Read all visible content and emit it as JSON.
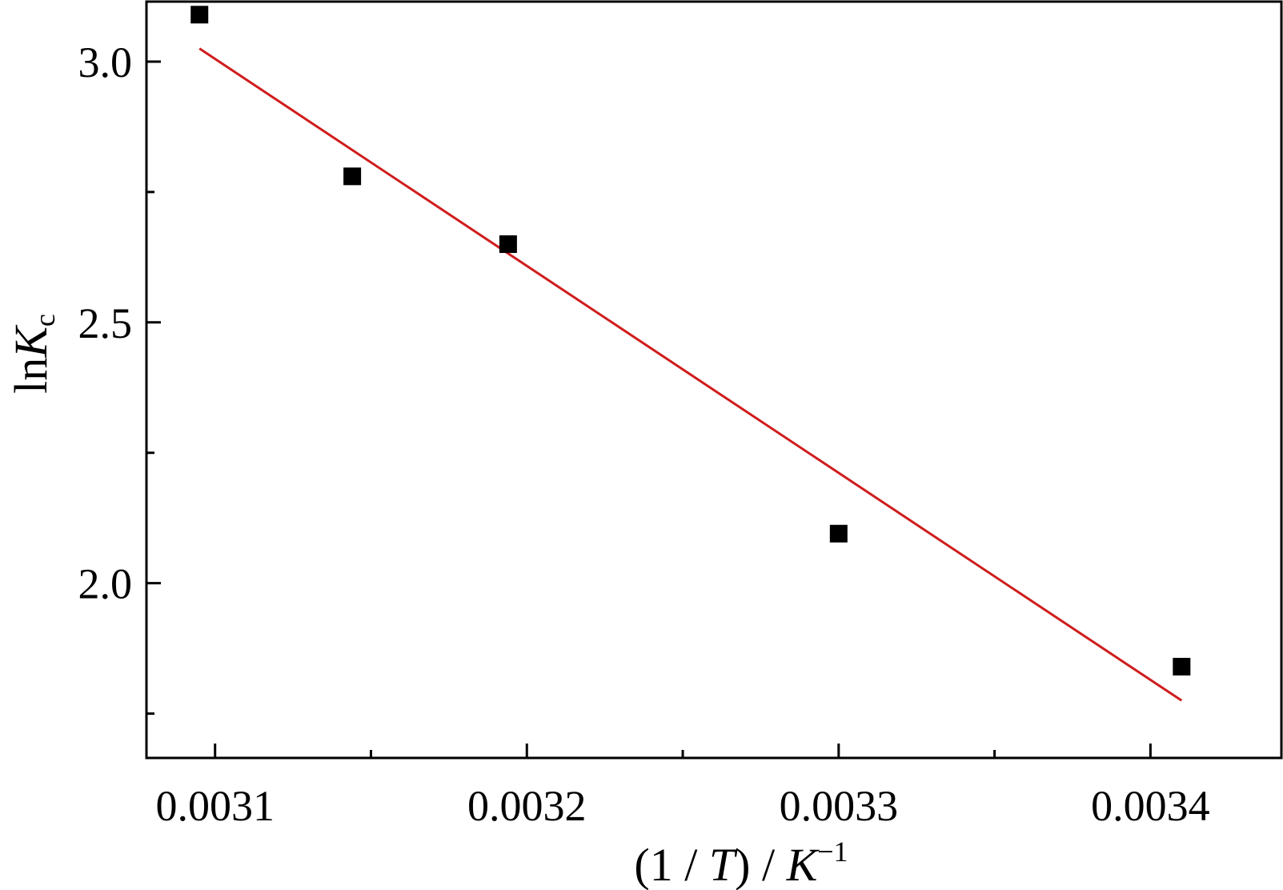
{
  "chart_data": {
    "type": "scatter",
    "xlabel": {
      "prefix": "(1 / ",
      "var": "T",
      "suffix": ") / ",
      "unit": "K",
      "exp": "−1"
    },
    "ylabel": {
      "fn": "ln",
      "var": "K",
      "sub": "c"
    },
    "xlim": [
      0.003078,
      0.003442
    ],
    "ylim": [
      1.665,
      3.115
    ],
    "x_ticks": [
      {
        "value": 0.0031,
        "label": "0.0031"
      },
      {
        "value": 0.0032,
        "label": "0.0032"
      },
      {
        "value": 0.0033,
        "label": "0.0033"
      },
      {
        "value": 0.0034,
        "label": "0.0034"
      }
    ],
    "x_minor_ticks": [
      0.00315,
      0.00325,
      0.00335
    ],
    "y_ticks": [
      {
        "value": 2.0,
        "label": "2.0"
      },
      {
        "value": 2.5,
        "label": "2.5"
      },
      {
        "value": 3.0,
        "label": "3.0"
      }
    ],
    "y_minor_ticks": [
      1.75,
      2.25,
      2.75
    ],
    "grid": false,
    "series": [
      {
        "marker": "square",
        "color": "#000000",
        "points": [
          {
            "x": 0.003095,
            "y": 3.09
          },
          {
            "x": 0.003144,
            "y": 2.78
          },
          {
            "x": 0.003194,
            "y": 2.65
          },
          {
            "x": 0.0033,
            "y": 2.095
          },
          {
            "x": 0.00341,
            "y": 1.84
          }
        ]
      }
    ],
    "fit_line": {
      "color": "#d01c1c",
      "x": [
        0.003095,
        0.00341
      ],
      "y": [
        3.025,
        1.775
      ]
    }
  }
}
